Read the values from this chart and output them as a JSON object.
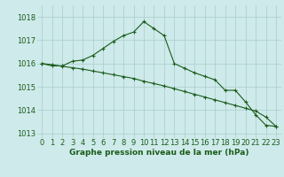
{
  "xlabel": "Graphe pression niveau de la mer (hPa)",
  "hours": [
    0,
    1,
    2,
    3,
    4,
    5,
    6,
    7,
    8,
    9,
    10,
    11,
    12,
    13,
    14,
    15,
    16,
    17,
    18,
    19,
    20,
    21,
    22,
    23
  ],
  "line1": [
    1016.0,
    1015.9,
    1015.9,
    1016.1,
    1016.15,
    1016.35,
    1016.65,
    1016.95,
    1017.2,
    1017.35,
    1017.8,
    1017.5,
    1017.2,
    1016.0,
    1015.8,
    1015.6,
    1015.45,
    1015.3,
    1014.85,
    1014.85,
    1014.35,
    1013.8,
    1013.35,
    1013.3
  ],
  "line2": [
    1016.0,
    1015.95,
    1015.88,
    1015.82,
    1015.76,
    1015.68,
    1015.6,
    1015.52,
    1015.44,
    1015.36,
    1015.24,
    1015.14,
    1015.04,
    1014.92,
    1014.8,
    1014.68,
    1014.56,
    1014.44,
    1014.32,
    1014.2,
    1014.08,
    1013.96,
    1013.7,
    1013.3
  ],
  "line_color": "#1a5c1a",
  "bg_color": "#ceeaea",
  "grid_color": "#aacccc",
  "ylim_min": 1012.8,
  "ylim_max": 1018.5,
  "yticks": [
    1013,
    1014,
    1015,
    1016,
    1017,
    1018
  ],
  "xticks": [
    0,
    1,
    2,
    3,
    4,
    5,
    6,
    7,
    8,
    9,
    10,
    11,
    12,
    13,
    14,
    15,
    16,
    17,
    18,
    19,
    20,
    21,
    22,
    23
  ],
  "xlabel_color": "#1a5c1a",
  "xlabel_fontsize": 6.5,
  "tick_fontsize": 6,
  "marker": "+",
  "marker_size": 3,
  "line_width": 0.8
}
